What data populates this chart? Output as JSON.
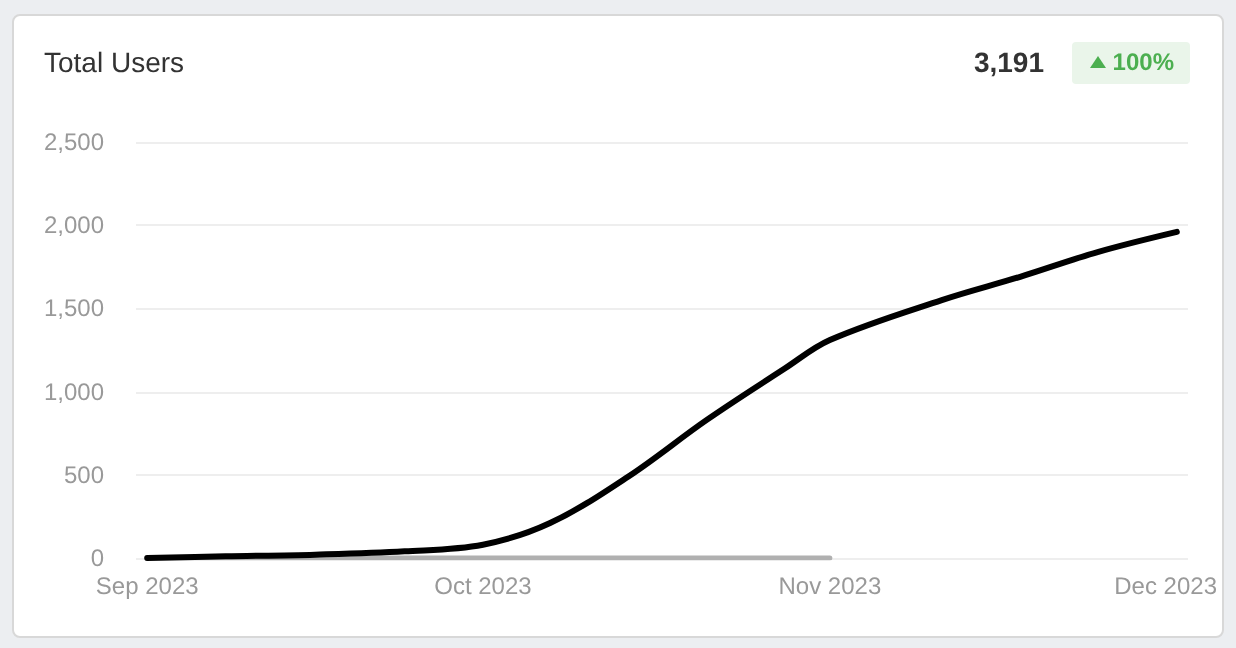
{
  "chart_data": {
    "type": "line",
    "title": "Total Users",
    "annotations": [
      "3,191",
      "100%"
    ],
    "xlim": [
      "2023-08-31",
      "2023-12-03"
    ],
    "xticks": [
      {
        "value": "2023-09-01",
        "label": "Sep 2023"
      },
      {
        "value": "2023-10-01",
        "label": "Oct 2023"
      },
      {
        "value": "2023-11-01",
        "label": "Nov 2023"
      },
      {
        "value": "2023-12-01",
        "label": "Dec 2023"
      }
    ],
    "ylim": [
      0,
      2500
    ],
    "yticks": [
      0,
      500,
      {
        "value": 1000,
        "label": "1,000"
      },
      {
        "value": 1500,
        "label": "1,500"
      },
      {
        "value": 2000,
        "label": "2,000"
      },
      {
        "value": 2500,
        "label": "2,500"
      }
    ],
    "grid": "y",
    "marker": "none",
    "line_style": "solid",
    "series": [
      {
        "color": "#000000",
        "x": [
          "2023-09-01",
          "2023-09-08",
          "2023-09-16",
          "2023-09-24",
          "2023-10-01",
          "2023-10-07",
          "2023-10-14",
          "2023-10-21",
          "2023-10-28",
          "2023-11-01",
          "2023-11-11",
          "2023-11-18",
          "2023-11-25",
          "2023-12-02"
        ],
        "values": [
          0,
          10,
          20,
          40,
          80,
          210,
          490,
          830,
          1140,
          1310,
          1550,
          1690,
          1840,
          1960
        ]
      },
      {
        "color": "#b0b0b0",
        "x": [
          "2023-09-01",
          "2023-11-01"
        ],
        "values": [
          0,
          0
        ]
      }
    ]
  }
}
